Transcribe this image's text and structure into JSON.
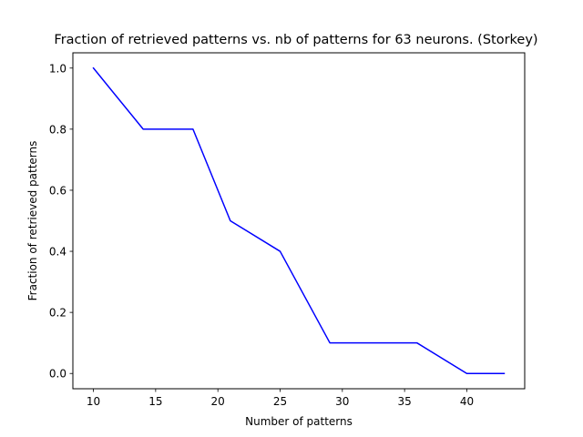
{
  "chart_data": {
    "type": "line",
    "title": "Fraction of retrieved patterns vs. nb of patterns for 63 neurons. (Storkey)",
    "xlabel": "Number of patterns",
    "ylabel": "Fraction of retrieved patterns",
    "xlim": [
      8.35,
      44.65
    ],
    "ylim": [
      -0.05,
      1.05
    ],
    "xticks": [
      "10",
      "15",
      "20",
      "25",
      "30",
      "35",
      "40"
    ],
    "yticks": [
      "0.0",
      "0.2",
      "0.4",
      "0.6",
      "0.8",
      "1.0"
    ],
    "grid": false,
    "series": [
      {
        "color": "#0000ff",
        "points": [
          {
            "x": 10,
            "y": 1.0
          },
          {
            "x": 14,
            "y": 0.8
          },
          {
            "x": 18,
            "y": 0.8
          },
          {
            "x": 21,
            "y": 0.5
          },
          {
            "x": 25,
            "y": 0.4
          },
          {
            "x": 29,
            "y": 0.1
          },
          {
            "x": 32,
            "y": 0.1
          },
          {
            "x": 36,
            "y": 0.1
          },
          {
            "x": 40,
            "y": 0.0
          },
          {
            "x": 43,
            "y": 0.0
          }
        ]
      }
    ]
  }
}
